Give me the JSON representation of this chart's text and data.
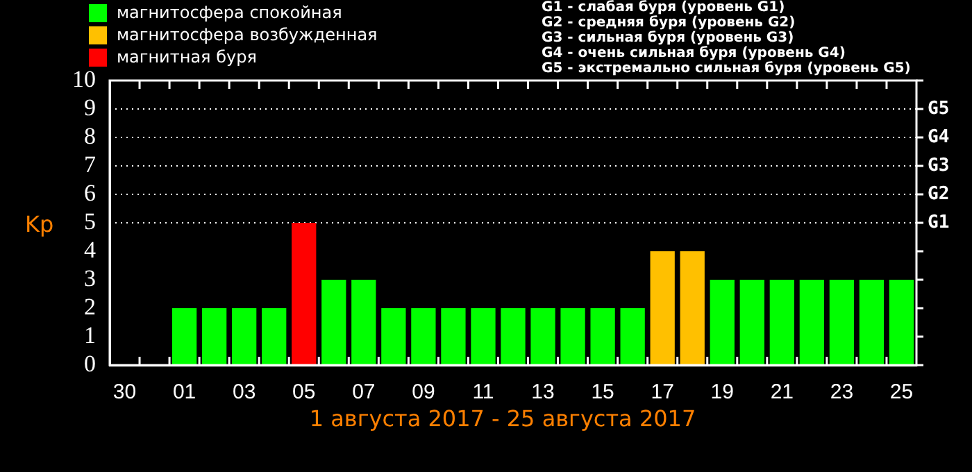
{
  "chart_data": {
    "type": "bar",
    "categories": [
      "30",
      null,
      "01",
      null,
      "03",
      null,
      "05",
      null,
      "07",
      null,
      "09",
      null,
      "11",
      null,
      "13",
      null,
      "15",
      null,
      "17",
      null,
      "19",
      null,
      "21",
      null,
      "23",
      null,
      "25"
    ],
    "series": [
      {
        "name": "магнитосфера спокойная",
        "color": "#00ff00",
        "values": [
          null,
          null,
          2,
          2,
          2,
          2,
          null,
          3,
          3,
          2,
          2,
          2,
          2,
          2,
          2,
          2,
          2,
          2,
          null,
          null,
          3,
          3,
          3,
          3,
          3,
          3,
          3
        ]
      },
      {
        "name": "магнитосфера возбужденная",
        "color": "#ffc000",
        "values": [
          null,
          null,
          null,
          null,
          null,
          null,
          null,
          null,
          null,
          null,
          null,
          null,
          null,
          null,
          null,
          null,
          null,
          null,
          4,
          4,
          null,
          null,
          null,
          null,
          null,
          null,
          null
        ]
      },
      {
        "name": "магнитная буря",
        "color": "#ff0000",
        "values": [
          null,
          null,
          null,
          null,
          null,
          null,
          5,
          null,
          null,
          null,
          null,
          null,
          null,
          null,
          null,
          null,
          null,
          null,
          null,
          null,
          null,
          null,
          null,
          null,
          null,
          null,
          null
        ]
      }
    ],
    "ylim": [
      0,
      10
    ],
    "yticks": [
      0,
      1,
      2,
      3,
      4,
      5,
      6,
      7,
      8,
      9,
      10
    ],
    "ref_lines": [
      {
        "axis": "y",
        "value": 5,
        "label": "G1",
        "color": "#ffffff",
        "line_style": "dotted"
      },
      {
        "axis": "y",
        "value": 6,
        "label": "G2",
        "color": "#ffffff",
        "line_style": "dotted"
      },
      {
        "axis": "y",
        "value": 7,
        "label": "G3",
        "color": "#ffffff",
        "line_style": "dotted"
      },
      {
        "axis": "y",
        "value": 8,
        "label": "G4",
        "color": "#ffffff",
        "line_style": "dotted"
      },
      {
        "axis": "y",
        "value": 9,
        "label": "G5",
        "color": "#ffffff",
        "line_style": "dotted"
      }
    ],
    "ylabel": "Kp",
    "xlabel": "1 августа 2017 - 25 августа 2017",
    "legend": "top left",
    "annotations": [
      "G1 - слабая буря (уровень G1)",
      "G2 - средняя буря (уровень G2)",
      "G3 - сильная буря (уровень G3)",
      "G4 - очень сильная буря (уровень G4)",
      "G5 - экстремально сильная буря (уровень G5)"
    ]
  }
}
